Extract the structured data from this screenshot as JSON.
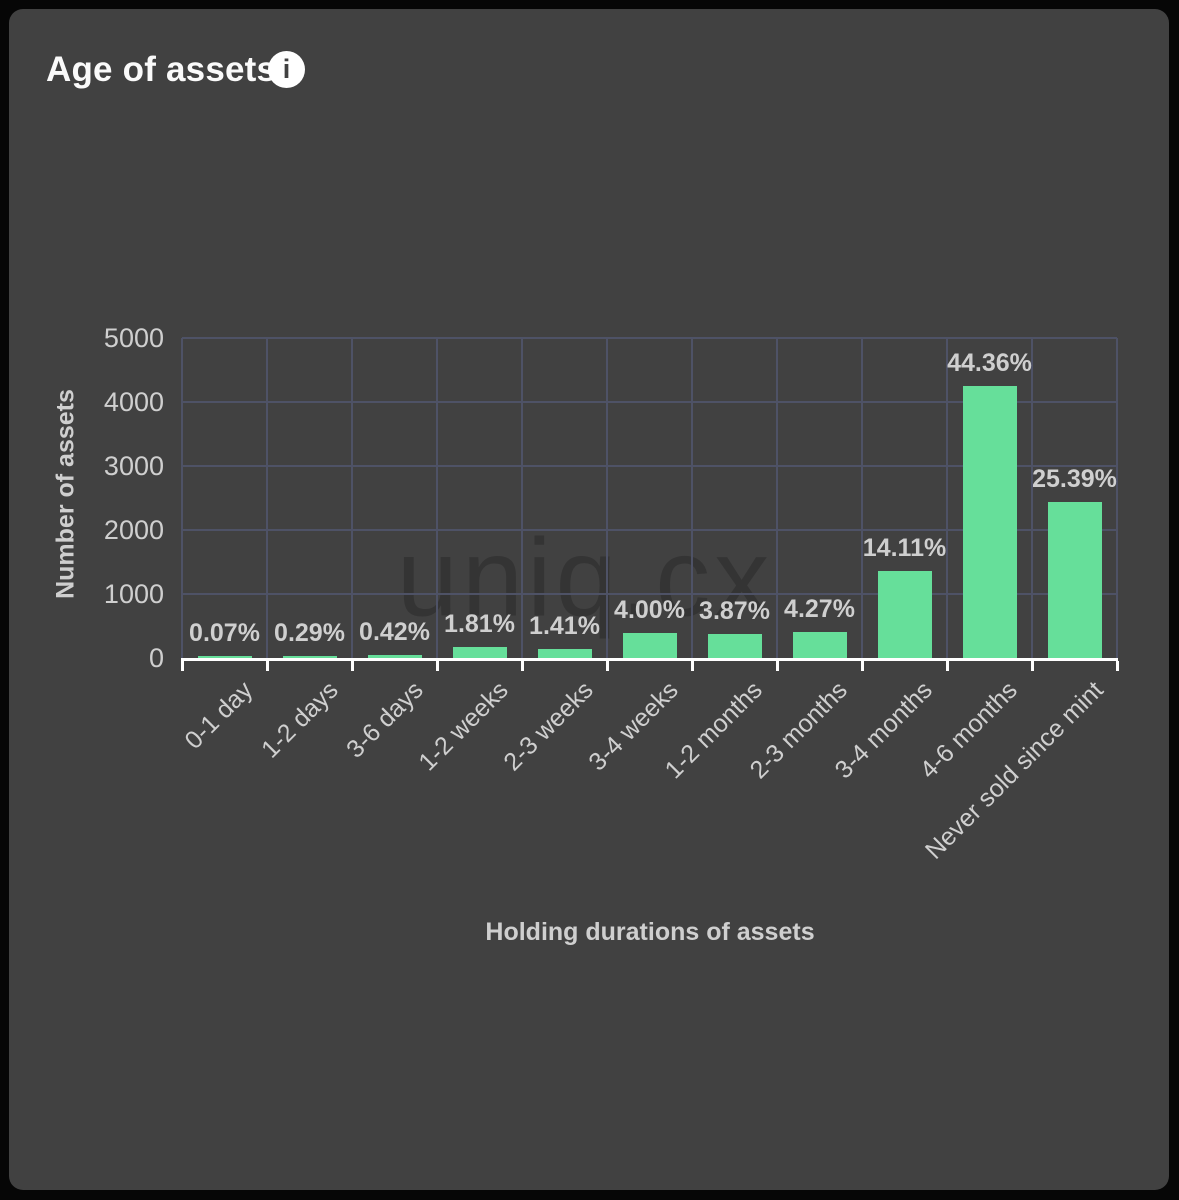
{
  "header": {
    "title": "Age of assets"
  },
  "icons": {
    "info_glyph": "i"
  },
  "watermark": "uniq.cx",
  "colors": {
    "frame": "#060606",
    "card_background": "#414141",
    "bar": "#66df9a",
    "gridline": "#4e5266",
    "axis": "#ffffff",
    "text": "#cfcfcf",
    "title": "#fafafa"
  },
  "chart_data": {
    "type": "bar",
    "title": "Age of assets",
    "xlabel": "Holding durations of assets",
    "ylabel": "Number of assets",
    "categories": [
      "0-1 day",
      "1-2 days",
      "3-6 days",
      "1-2 weeks",
      "2-3 weeks",
      "3-4 weeks",
      "1-2 months",
      "2-3 months",
      "3-4 months",
      "4-6 months",
      "Never sold since mint"
    ],
    "values": [
      7,
      28,
      40,
      173,
      135,
      383,
      371,
      409,
      1352,
      4250,
      2432
    ],
    "percent_labels": [
      "0.07%",
      "0.29%",
      "0.42%",
      "1.81%",
      "1.41%",
      "4.00%",
      "3.87%",
      "4.27%",
      "14.11%",
      "44.36%",
      "25.39%"
    ],
    "yticks": [
      0,
      1000,
      2000,
      3000,
      4000,
      5000
    ],
    "ylim": [
      0,
      5000
    ],
    "grid": true,
    "legend": false
  }
}
